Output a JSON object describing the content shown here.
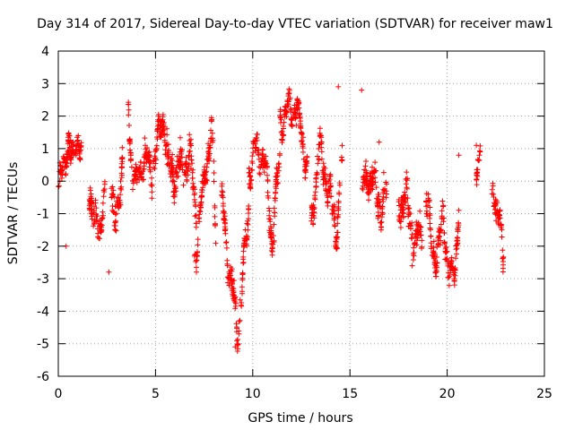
{
  "chart_data": {
    "type": "scatter",
    "title": "Day 314 of 2017, Sidereal Day-to-day VTEC variation (SDTVAR) for receiver maw1",
    "xlabel": "GPS time / hours",
    "ylabel": "SDTVAR / TECUs",
    "xlim": [
      0,
      25
    ],
    "ylim": [
      -6,
      4
    ],
    "xticks": [
      0,
      5,
      10,
      15,
      20,
      25
    ],
    "yticks": [
      -6,
      -5,
      -4,
      -3,
      -2,
      -1,
      0,
      1,
      2,
      3,
      4
    ],
    "grid": true,
    "marker": "+",
    "color": "#ff0000",
    "series": [
      {
        "name": "SDTVAR",
        "segments": [
          {
            "t": [
              0.0,
              0.25,
              0.5,
              0.75,
              1.0,
              1.2
            ],
            "v": [
              -0.3,
              0.3,
              1.2,
              0.5,
              1.5,
              0.8
            ],
            "spread": 0.5
          },
          {
            "t": [
              1.6,
              1.8,
              2.0,
              2.2,
              2.4
            ],
            "v": [
              -0.4,
              -1.6,
              -0.8,
              -1.4,
              -0.5
            ],
            "spread": 0.6
          },
          {
            "t": [
              2.7,
              2.9,
              3.1,
              3.3
            ],
            "v": [
              0.3,
              -1.5,
              -0.8,
              0.8
            ],
            "spread": 0.7
          },
          {
            "t": [
              3.6,
              3.8,
              4.0,
              4.4,
              4.8,
              5.1,
              5.4,
              5.6
            ],
            "v": [
              2.4,
              0.3,
              -0.2,
              0.8,
              0.2,
              1.2,
              2.0,
              1.0
            ],
            "spread": 0.5
          },
          {
            "t": [
              5.6,
              6.0,
              6.4,
              6.8,
              7.1
            ],
            "v": [
              0.5,
              0.2,
              0.5,
              0.6,
              -0.8
            ],
            "spread": 0.6
          },
          {
            "t": [
              7.0,
              7.3,
              7.6,
              7.9,
              8.1
            ],
            "v": [
              -2.5,
              -1.0,
              0.5,
              1.5,
              -1.5
            ],
            "spread": 0.5
          },
          {
            "t": [
              8.4,
              8.7,
              9.0,
              9.2,
              9.5,
              9.8
            ],
            "v": [
              -0.5,
              -2.3,
              -3.5,
              -4.8,
              -2.8,
              -1.0
            ],
            "spread": 0.5
          },
          {
            "t": [
              9.8,
              10.2,
              10.6,
              11.0,
              11.4
            ],
            "v": [
              0.3,
              1.0,
              0.6,
              -1.8,
              0.8
            ],
            "spread": 0.5
          },
          {
            "t": [
              11.4,
              11.8,
              12.2,
              12.5,
              12.8
            ],
            "v": [
              1.8,
              2.2,
              2.3,
              1.5,
              0.5
            ],
            "spread": 0.4
          },
          {
            "t": [
              13.0,
              13.4,
              13.7,
              14.0,
              14.3,
              14.6
            ],
            "v": [
              -1.5,
              1.0,
              0.3,
              -0.5,
              -1.5,
              0.5
            ],
            "spread": 0.5
          },
          {
            "t": [
              15.6,
              15.9,
              16.2,
              16.6,
              16.9
            ],
            "v": [
              -0.5,
              0.2,
              0.0,
              -0.8,
              -0.3
            ],
            "spread": 0.6
          },
          {
            "t": [
              17.5,
              17.9,
              18.3,
              18.7
            ],
            "v": [
              -0.8,
              -0.5,
              -2.0,
              -1.5
            ],
            "spread": 0.6
          },
          {
            "t": [
              18.9,
              19.2,
              19.5,
              19.8,
              20.1,
              20.4,
              20.6
            ],
            "v": [
              -0.5,
              -1.8,
              -2.5,
              -0.8,
              -3.2,
              -2.5,
              -1.0
            ],
            "spread": 0.5
          },
          {
            "t": [
              21.5,
              21.7
            ],
            "v": [
              0.5,
              1.0
            ],
            "spread": 0.4
          },
          {
            "t": [
              22.3,
              22.5,
              22.7,
              22.9
            ],
            "v": [
              -0.5,
              -1.0,
              -0.5,
              -2.8
            ],
            "spread": 0.5
          }
        ],
        "isolated": [
          {
            "t": 0.4,
            "v": -2.0
          },
          {
            "t": 2.6,
            "v": -2.8
          },
          {
            "t": 15.6,
            "v": 2.8
          },
          {
            "t": 14.4,
            "v": 2.9
          },
          {
            "t": 16.5,
            "v": 1.2
          },
          {
            "t": 21.5,
            "v": 1.1
          },
          {
            "t": 20.6,
            "v": 0.8
          },
          {
            "t": 18.2,
            "v": -2.6
          },
          {
            "t": 9.1,
            "v": -5.1
          },
          {
            "t": 16.6,
            "v": -1.5
          }
        ]
      }
    ]
  }
}
